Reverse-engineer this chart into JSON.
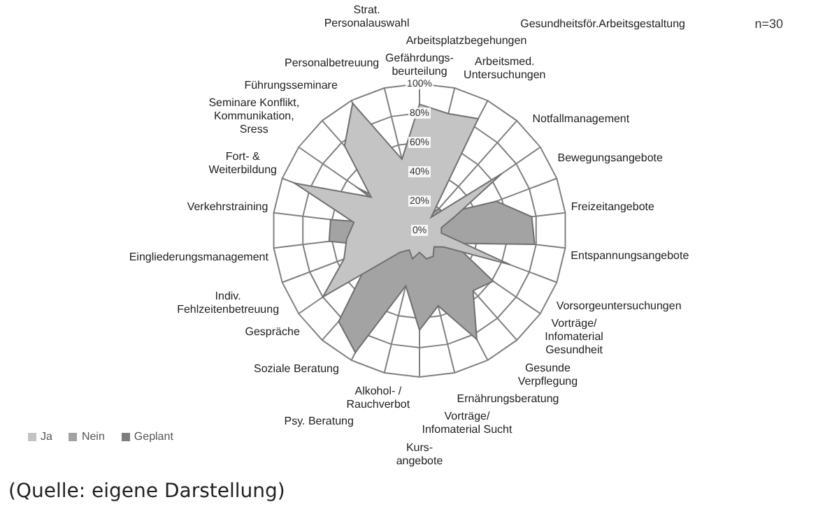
{
  "chart_data": {
    "type": "radar",
    "categories": [
      "Gefährdungs-\nbeurteilung",
      "Arbeitsplatzbegehungen",
      "Arbeitsmed. Untersuchungen",
      "Gesundheitsför.Arbeitsgestaltung",
      "Notfallmanagement",
      "Bewegungsangebote",
      "Freizeitangebote",
      "Entspannungsangebote",
      "Vorsorgeuntersuchungen",
      "Vorträge/ Infomaterial Gesundheit",
      "Gesunde Verpflegung",
      "Ernährungsberatung",
      "Vorträge/ Infomaterial Sucht",
      "Kurs-\nangebote",
      "Alkohol- / Rauchverbot",
      "Psy. Beratung",
      "Soziale Beratung",
      "Gespräche",
      "Indiv. Fehlzeitenbetreuung",
      "Eingliederungsmanagement",
      "Verkehrstraining",
      "Fort- & Weiterbildung",
      "Seminare Konflikt, Kommunikation, Sress",
      "Führungsseminare",
      "Personalbetreuung",
      "Strat. Personalauswahl"
    ],
    "series": [
      {
        "name": "Ja",
        "color": "#c4c4c4",
        "values": [
          86,
          82,
          86,
          12,
          68,
          25,
          15,
          15,
          66,
          20,
          15,
          20,
          20,
          15,
          20,
          15,
          20,
          80,
          55,
          50,
          45,
          91,
          40,
          77,
          98,
          50
        ]
      },
      {
        "name": "Nein",
        "color": "#a3a3a3",
        "values": [
          10,
          10,
          10,
          20,
          20,
          56,
          77,
          79,
          25,
          61,
          55,
          84,
          53,
          68,
          39,
          94,
          83,
          45,
          30,
          62,
          61,
          10,
          50,
          20,
          5,
          40
        ]
      },
      {
        "name": "Geplant",
        "color": "#7d7d7d",
        "values": [
          5,
          5,
          5,
          10,
          10,
          15,
          10,
          10,
          10,
          20,
          20,
          10,
          15,
          15,
          10,
          10,
          10,
          10,
          15,
          10,
          10,
          5,
          15,
          5,
          5,
          5
        ]
      }
    ],
    "ylim": [
      0,
      100
    ],
    "yticks": [
      {
        "value": 0,
        "label": "0%"
      },
      {
        "value": 20,
        "label": "20%"
      },
      {
        "value": 40,
        "label": "40%"
      },
      {
        "value": 60,
        "label": "60%"
      },
      {
        "value": 80,
        "label": "80%"
      },
      {
        "value": 100,
        "label": "100%"
      }
    ],
    "grid": true,
    "legend": "bottom left",
    "marker": "none",
    "annotations": [
      "n=30",
      "(Quelle: eigene Darstellung)"
    ]
  }
}
